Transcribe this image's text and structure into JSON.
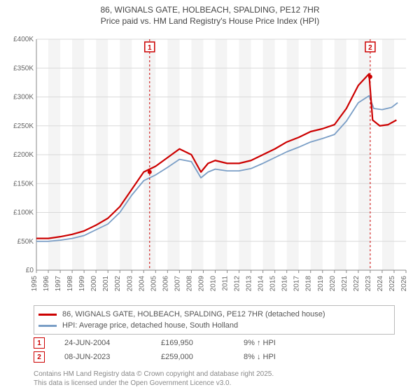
{
  "title_l1": "86, WIGNALS GATE, HOLBEACH, SPALDING, PE12 7HR",
  "title_l2": "Price paid vs. HM Land Registry's House Price Index (HPI)",
  "chart": {
    "type": "line",
    "background_color": "#ffffff",
    "plot_bg_band_color": "#f4f4f4",
    "grid_color": "#d9d9d9",
    "axis_color": "#888888",
    "x_years": [
      1995,
      1996,
      1997,
      1998,
      1999,
      2000,
      2001,
      2002,
      2003,
      2004,
      2005,
      2006,
      2007,
      2008,
      2009,
      2010,
      2011,
      2012,
      2013,
      2014,
      2015,
      2016,
      2017,
      2018,
      2019,
      2020,
      2021,
      2022,
      2023,
      2024,
      2025,
      2026
    ],
    "y_ticks": [
      0,
      50000,
      100000,
      150000,
      200000,
      250000,
      300000,
      350000,
      400000
    ],
    "y_tick_labels": [
      "£0",
      "£50K",
      "£100K",
      "£150K",
      "£200K",
      "£250K",
      "£300K",
      "£350K",
      "£400K"
    ],
    "ylim": [
      0,
      400000
    ],
    "xlim": [
      1995,
      2026
    ],
    "series": [
      {
        "name": "price_paid",
        "color": "#cc0000",
        "width": 2.2,
        "legend": "86, WIGNALS GATE, HOLBEACH, SPALDING, PE12 7HR (detached house)",
        "points": [
          [
            1995,
            55000
          ],
          [
            1996,
            55000
          ],
          [
            1997,
            58000
          ],
          [
            1998,
            62000
          ],
          [
            1999,
            68000
          ],
          [
            2000,
            78000
          ],
          [
            2001,
            90000
          ],
          [
            2002,
            110000
          ],
          [
            2003,
            140000
          ],
          [
            2004,
            170000
          ],
          [
            2005,
            180000
          ],
          [
            2006,
            195000
          ],
          [
            2007,
            210000
          ],
          [
            2008,
            200000
          ],
          [
            2008.8,
            170000
          ],
          [
            2009.4,
            185000
          ],
          [
            2010,
            190000
          ],
          [
            2011,
            185000
          ],
          [
            2012,
            185000
          ],
          [
            2013,
            190000
          ],
          [
            2014,
            200000
          ],
          [
            2015,
            210000
          ],
          [
            2016,
            222000
          ],
          [
            2017,
            230000
          ],
          [
            2018,
            240000
          ],
          [
            2019,
            245000
          ],
          [
            2020,
            252000
          ],
          [
            2021,
            280000
          ],
          [
            2022,
            320000
          ],
          [
            2022.9,
            340000
          ],
          [
            2023.2,
            260000
          ],
          [
            2023.8,
            250000
          ],
          [
            2024.5,
            252000
          ],
          [
            2025.2,
            260000
          ]
        ]
      },
      {
        "name": "hpi",
        "color": "#7a9ec6",
        "width": 1.8,
        "legend": "HPI: Average price, detached house, South Holland",
        "points": [
          [
            1995,
            50000
          ],
          [
            1996,
            50000
          ],
          [
            1997,
            52000
          ],
          [
            1998,
            55000
          ],
          [
            1999,
            60000
          ],
          [
            2000,
            70000
          ],
          [
            2001,
            80000
          ],
          [
            2002,
            100000
          ],
          [
            2003,
            130000
          ],
          [
            2004,
            155000
          ],
          [
            2005,
            165000
          ],
          [
            2006,
            178000
          ],
          [
            2007,
            192000
          ],
          [
            2008,
            188000
          ],
          [
            2008.8,
            160000
          ],
          [
            2009.4,
            170000
          ],
          [
            2010,
            175000
          ],
          [
            2011,
            172000
          ],
          [
            2012,
            172000
          ],
          [
            2013,
            176000
          ],
          [
            2014,
            185000
          ],
          [
            2015,
            195000
          ],
          [
            2016,
            205000
          ],
          [
            2017,
            213000
          ],
          [
            2018,
            222000
          ],
          [
            2019,
            228000
          ],
          [
            2020,
            235000
          ],
          [
            2021,
            258000
          ],
          [
            2022,
            290000
          ],
          [
            2022.9,
            302000
          ],
          [
            2023.3,
            280000
          ],
          [
            2024,
            278000
          ],
          [
            2024.8,
            282000
          ],
          [
            2025.3,
            290000
          ]
        ]
      }
    ],
    "event_markers": [
      {
        "id": "1",
        "year": 2004.5,
        "y": 170000
      },
      {
        "id": "2",
        "year": 2023.0,
        "y": 335000
      }
    ],
    "event_line_color": "#cc0000",
    "event_box_border": "#cc0000"
  },
  "legend": {
    "rows": [
      {
        "color": "#cc0000",
        "label": "86, WIGNALS GATE, HOLBEACH, SPALDING, PE12 7HR (detached house)"
      },
      {
        "color": "#7a9ec6",
        "label": "HPI: Average price, detached house, South Holland"
      }
    ]
  },
  "marker_rows": [
    {
      "id": "1",
      "date": "24-JUN-2004",
      "price": "£169,950",
      "delta": "9% ↑ HPI"
    },
    {
      "id": "2",
      "date": "08-JUN-2023",
      "price": "£259,000",
      "delta": "8% ↓ HPI"
    }
  ],
  "credit_l1": "Contains HM Land Registry data © Crown copyright and database right 2025.",
  "credit_l2": "This data is licensed under the Open Government Licence v3.0."
}
